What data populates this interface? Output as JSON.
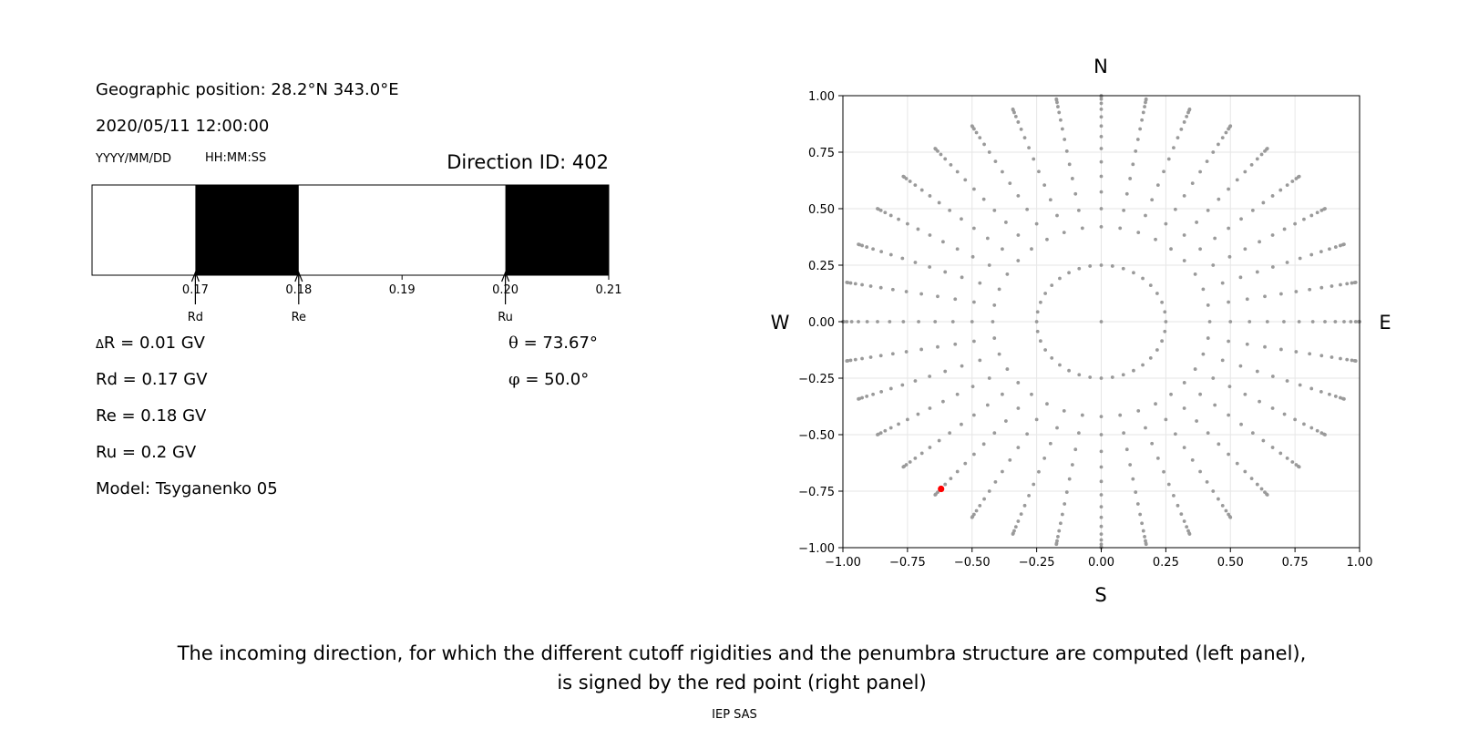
{
  "left_panel": {
    "position": "Geographic position: 28.2°N 343.0°E",
    "datetime": "2020/05/11 12:00:00",
    "date_format": "YYYY/MM/DD",
    "time_format": "HH:MM:SS",
    "direction_id": "Direction ID: 402",
    "delta_r_symbol": "Δ",
    "delta_r_text": "R = 0.01 GV",
    "rd_text": "Rd = 0.17 GV",
    "re_text": "Re = 0.18 GV",
    "ru_text": "Ru = 0.2 GV",
    "model": "Model: Tsyganenko 05",
    "theta_symbol": "θ",
    "theta_text": " = 73.67°",
    "phi_symbol": "φ",
    "phi_text": " = 50.0°"
  },
  "caption": {
    "line1": "The incoming direction, for which the different cutoff rigidities and the penumbra structure are computed (left panel),",
    "line2": "is signed by the red point (right panel)",
    "credit": "IEP SAS"
  },
  "compass": {
    "north": "N",
    "south": "S",
    "west": "W",
    "east": "E"
  },
  "chart_data": [
    {
      "type": "heatmap",
      "description_of_marks": "penumbra bar: black = forbidden rigidity bands, white = allowed",
      "xlim": [
        0.16,
        0.21
      ],
      "ticks": [
        {
          "value": 0.17,
          "label": "0.17"
        },
        {
          "value": 0.18,
          "label": "0.18"
        },
        {
          "value": 0.19,
          "label": "0.19"
        },
        {
          "value": 0.2,
          "label": "0.20"
        },
        {
          "value": 0.21,
          "label": "0.21"
        }
      ],
      "forbidden_bands": [
        [
          0.17,
          0.18
        ],
        [
          0.2,
          0.21
        ]
      ],
      "markers": [
        {
          "name": "Rd",
          "value": 0.17
        },
        {
          "name": "Re",
          "value": 0.18
        },
        {
          "name": "Ru",
          "value": 0.2
        }
      ],
      "colors": {
        "forbidden": "#000000",
        "allowed": "#ffffff"
      }
    },
    {
      "type": "scatter",
      "xlim": [
        -1.0,
        1.0
      ],
      "ylim": [
        -1.0,
        1.0
      ],
      "grid": true,
      "xticks": [
        "−1.00",
        "−0.75",
        "−0.50",
        "−0.25",
        "0.00",
        "0.25",
        "0.50",
        "0.75",
        "1.00"
      ],
      "yticks": [
        "−1.00",
        "−0.75",
        "−0.50",
        "−0.25",
        "0.00",
        "0.25",
        "0.50",
        "0.75",
        "1.00"
      ],
      "directions_grid": {
        "spokes_azimuth_step_deg": 10,
        "center_point": [
          0.0,
          0.0
        ],
        "radii": [
          0.25,
          0.42,
          0.5,
          0.574,
          0.643,
          0.707,
          0.766,
          0.819,
          0.866,
          0.906,
          0.94,
          0.966,
          0.985,
          0.996,
          1.0
        ],
        "point_color": "#9a9a9a"
      },
      "selected_direction": {
        "x": -0.62,
        "y": -0.74,
        "color": "#ff0000"
      }
    }
  ]
}
